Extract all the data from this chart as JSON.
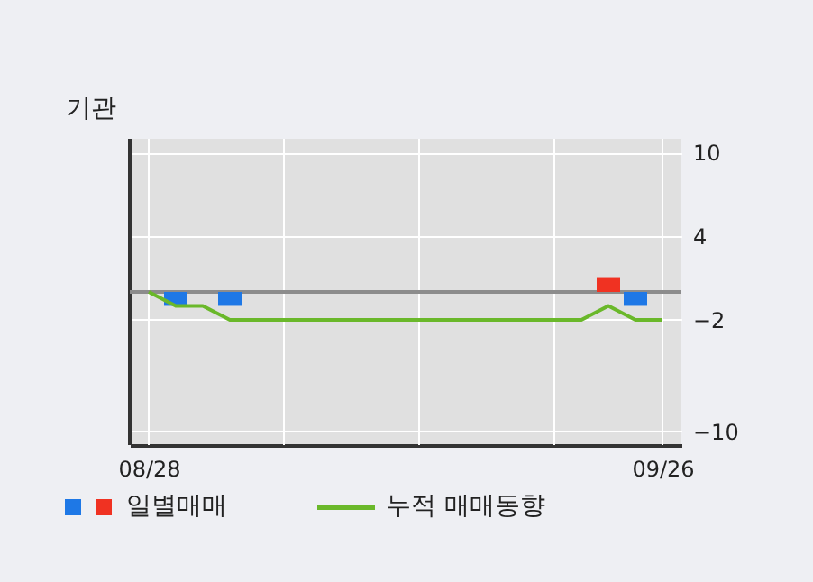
{
  "chart_data": {
    "type": "bar",
    "ylabel": "기관",
    "categories": [
      "08/28",
      null,
      null,
      null,
      null,
      null,
      null,
      null,
      null,
      null,
      null,
      null,
      null,
      null,
      null,
      null,
      null,
      null,
      null,
      "09/26"
    ],
    "series": [
      {
        "name": "일별매매",
        "colors": [
          null,
          "#1e78e6",
          null,
          "#1e78e6",
          null,
          null,
          null,
          null,
          null,
          null,
          null,
          null,
          null,
          null,
          null,
          null,
          null,
          "#f03222",
          "#1e78e6",
          null
        ],
        "values": [
          null,
          -1,
          null,
          -1,
          null,
          null,
          null,
          null,
          null,
          null,
          null,
          null,
          null,
          null,
          null,
          null,
          null,
          1,
          -1,
          null
        ]
      },
      {
        "name": "누적 매매동향",
        "type": "line",
        "color": "#6ab82a",
        "values": [
          0,
          -1,
          -1,
          -2,
          -2,
          -2,
          -2,
          -2,
          -2,
          -2,
          -2,
          -2,
          -2,
          -2,
          -2,
          -2,
          -2,
          -1,
          -2,
          -2
        ]
      }
    ],
    "ylim": [
      -11,
      11
    ],
    "yticks": [
      10,
      4,
      -2,
      -10
    ],
    "grid": true,
    "legend": "bottom",
    "ref_lines": [
      {
        "axis": "y",
        "value": 0,
        "color": "#8c8c8c"
      }
    ]
  }
}
